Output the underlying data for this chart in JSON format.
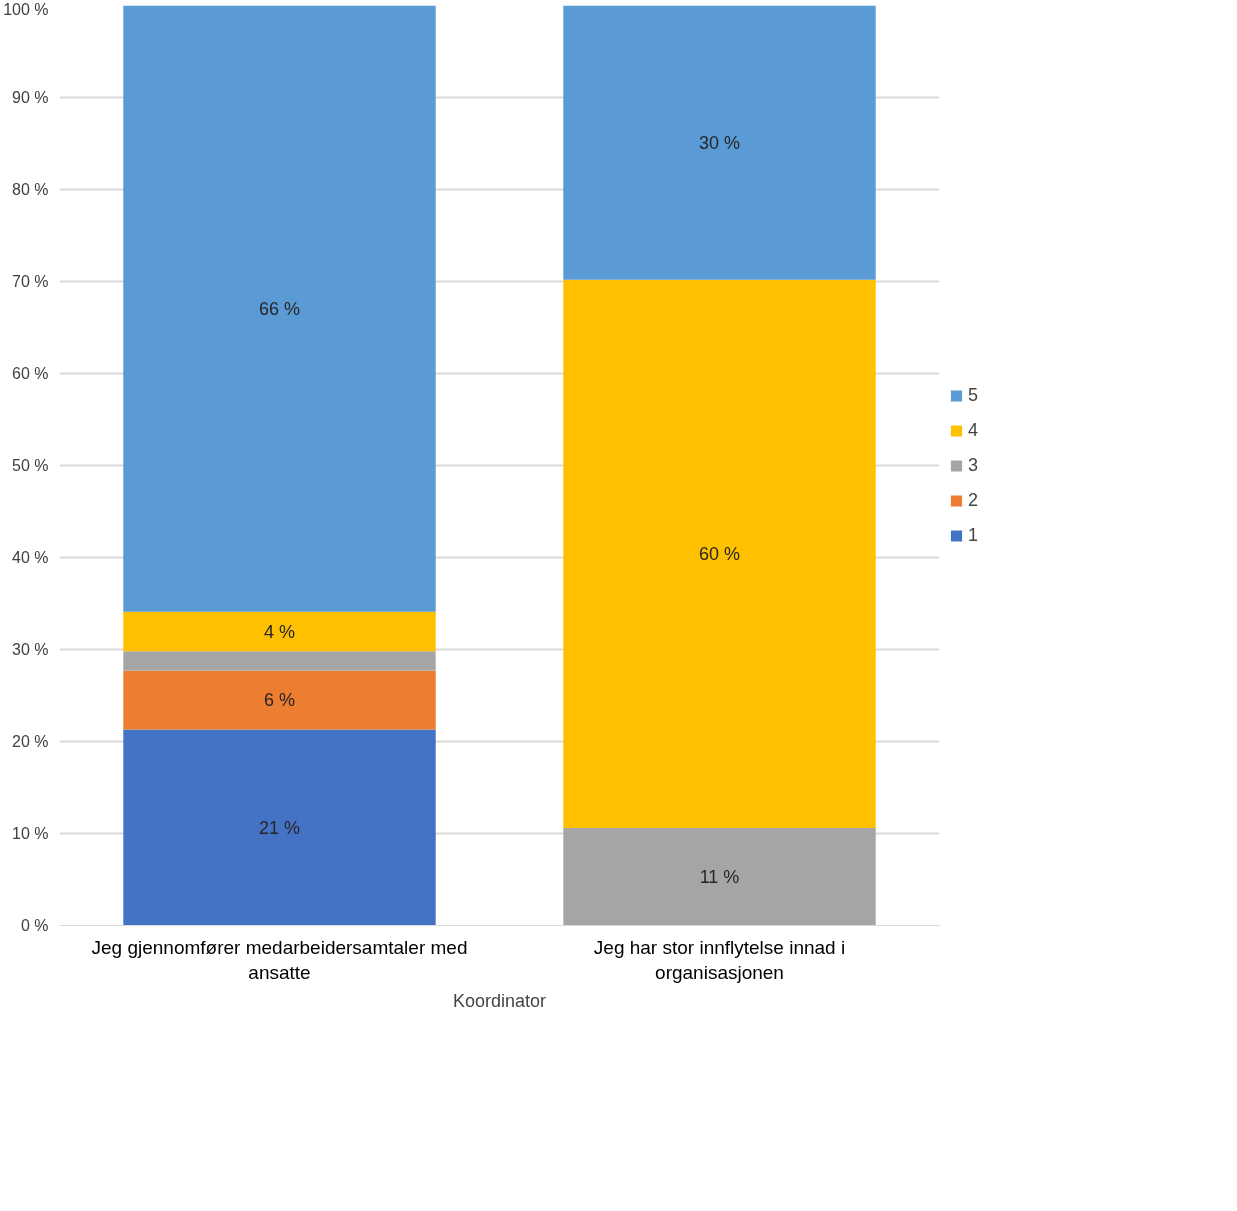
{
  "chart_data": {
    "type": "bar",
    "stacked": true,
    "categories": [
      "Jeg gjennomfører medarbeidersamtaler med ansatte",
      "Jeg har stor innflytelse innad i organisasjonen"
    ],
    "xlabel": "Koordinator",
    "series": [
      {
        "name": "1",
        "color": "#4472c4",
        "values": [
          21.3,
          null
        ],
        "value_labels": [
          "21 %",
          null
        ]
      },
      {
        "name": "2",
        "color": "#ed7d31",
        "values": [
          6.4,
          null
        ],
        "value_labels": [
          "6 %",
          null
        ]
      },
      {
        "name": "3",
        "color": "#a5a5a5",
        "values": [
          2.1,
          10.6
        ],
        "value_labels": [
          null,
          "11 %"
        ]
      },
      {
        "name": "4",
        "color": "#ffc000",
        "values": [
          4.3,
          59.6
        ],
        "value_labels": [
          "4 %",
          "60 %"
        ]
      },
      {
        "name": "5",
        "color": "#5b9bd5",
        "values": [
          65.9,
          29.8
        ],
        "value_labels": [
          "66 %",
          "30 %"
        ]
      }
    ],
    "ylim": [
      0,
      100
    ],
    "yticks": [
      {
        "value": 0,
        "label": "0 %"
      },
      {
        "value": 10,
        "label": "10 %"
      },
      {
        "value": 20,
        "label": "20 %"
      },
      {
        "value": 30,
        "label": "30 %"
      },
      {
        "value": 40,
        "label": "40 %"
      },
      {
        "value": 50,
        "label": "50 %"
      },
      {
        "value": 60,
        "label": "60 %"
      },
      {
        "value": 70,
        "label": "70 %"
      },
      {
        "value": 80,
        "label": "80 %"
      },
      {
        "value": 90,
        "label": "90 %"
      },
      {
        "value": 100,
        "label": "100 %"
      }
    ],
    "grid": "y",
    "legend": "right"
  }
}
